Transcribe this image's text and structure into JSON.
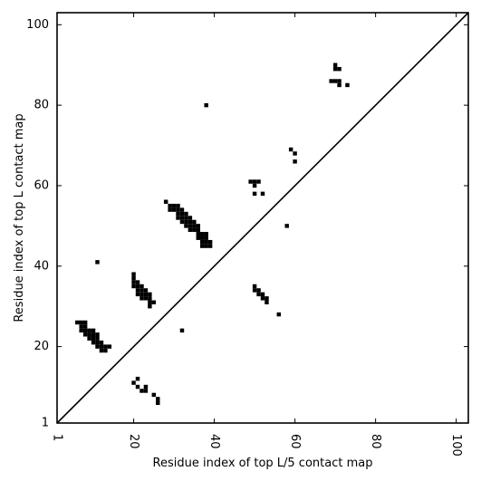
{
  "chart_data": {
    "type": "scatter",
    "title": "",
    "xlabel": "Residue index of top L/5 contact map",
    "ylabel": "Residue index of top L contact map",
    "xlim": [
      1,
      103
    ],
    "ylim": [
      1,
      103
    ],
    "xticks": [
      1,
      20,
      40,
      60,
      80,
      100
    ],
    "yticks": [
      1,
      20,
      40,
      60,
      80,
      100
    ],
    "x_tick_labels": [
      "1",
      "20",
      "40",
      "60",
      "80",
      "100"
    ],
    "y_tick_labels": [
      "1",
      "20",
      "40",
      "60",
      "80",
      "100"
    ],
    "x_tick_label_rotation": 90,
    "grid": false,
    "legend": "none",
    "diagonal_line": {
      "from": [
        1,
        1
      ],
      "to": [
        103,
        103
      ]
    },
    "marker": "square",
    "color": "#000000",
    "series": [
      {
        "points": [
          [
            6,
            26
          ],
          [
            7,
            26
          ],
          [
            8,
            26
          ],
          [
            7,
            25
          ],
          [
            8,
            25
          ],
          [
            7,
            24
          ],
          [
            8,
            24
          ],
          [
            9,
            24
          ],
          [
            10,
            24
          ],
          [
            8,
            23
          ],
          [
            9,
            23
          ],
          [
            10,
            23
          ],
          [
            11,
            23
          ],
          [
            9,
            22
          ],
          [
            10,
            22
          ],
          [
            11,
            22
          ],
          [
            10,
            21
          ],
          [
            11,
            21
          ],
          [
            12,
            21
          ],
          [
            11,
            20
          ],
          [
            12,
            20
          ],
          [
            13,
            20
          ],
          [
            14,
            20
          ],
          [
            12,
            19
          ],
          [
            13,
            19
          ],
          [
            11,
            41
          ],
          [
            20,
            38
          ],
          [
            20,
            37
          ],
          [
            20,
            36
          ],
          [
            21,
            36
          ],
          [
            20,
            35
          ],
          [
            21,
            35
          ],
          [
            22,
            35
          ],
          [
            21,
            34
          ],
          [
            22,
            34
          ],
          [
            23,
            34
          ],
          [
            21,
            33
          ],
          [
            22,
            33
          ],
          [
            23,
            33
          ],
          [
            24,
            33
          ],
          [
            22,
            32
          ],
          [
            23,
            32
          ],
          [
            24,
            32
          ],
          [
            24,
            31
          ],
          [
            25,
            31
          ],
          [
            24,
            30
          ],
          [
            28,
            56
          ],
          [
            29,
            55
          ],
          [
            30,
            55
          ],
          [
            31,
            55
          ],
          [
            29,
            54
          ],
          [
            30,
            54
          ],
          [
            31,
            54
          ],
          [
            32,
            54
          ],
          [
            31,
            53
          ],
          [
            32,
            53
          ],
          [
            33,
            53
          ],
          [
            31,
            52
          ],
          [
            32,
            52
          ],
          [
            33,
            52
          ],
          [
            34,
            52
          ],
          [
            32,
            51
          ],
          [
            33,
            51
          ],
          [
            34,
            51
          ],
          [
            35,
            51
          ],
          [
            33,
            50
          ],
          [
            34,
            50
          ],
          [
            35,
            50
          ],
          [
            36,
            50
          ],
          [
            34,
            49
          ],
          [
            35,
            49
          ],
          [
            36,
            49
          ],
          [
            36,
            48
          ],
          [
            37,
            48
          ],
          [
            38,
            48
          ],
          [
            36,
            47
          ],
          [
            37,
            47
          ],
          [
            38,
            47
          ],
          [
            37,
            46
          ],
          [
            38,
            46
          ],
          [
            39,
            46
          ],
          [
            37,
            45
          ],
          [
            38,
            45
          ],
          [
            39,
            45
          ],
          [
            38,
            80
          ],
          [
            32,
            24
          ],
          [
            21,
            12
          ],
          [
            20,
            11
          ],
          [
            21,
            10
          ],
          [
            22,
            9
          ],
          [
            23,
            10
          ],
          [
            23,
            9
          ],
          [
            25,
            8
          ],
          [
            26,
            7
          ],
          [
            26,
            6
          ],
          [
            49,
            61
          ],
          [
            50,
            61
          ],
          [
            51,
            61
          ],
          [
            50,
            60
          ],
          [
            50,
            58
          ],
          [
            52,
            58
          ],
          [
            58,
            50
          ],
          [
            50,
            35
          ],
          [
            50,
            34
          ],
          [
            51,
            34
          ],
          [
            51,
            33
          ],
          [
            52,
            33
          ],
          [
            52,
            32
          ],
          [
            53,
            32
          ],
          [
            53,
            31
          ],
          [
            56,
            28
          ],
          [
            59,
            69
          ],
          [
            60,
            68
          ],
          [
            60,
            66
          ],
          [
            70,
            90
          ],
          [
            70,
            89
          ],
          [
            71,
            89
          ],
          [
            69,
            86
          ],
          [
            70,
            86
          ],
          [
            71,
            86
          ],
          [
            71,
            85
          ],
          [
            73,
            85
          ]
        ]
      }
    ]
  }
}
